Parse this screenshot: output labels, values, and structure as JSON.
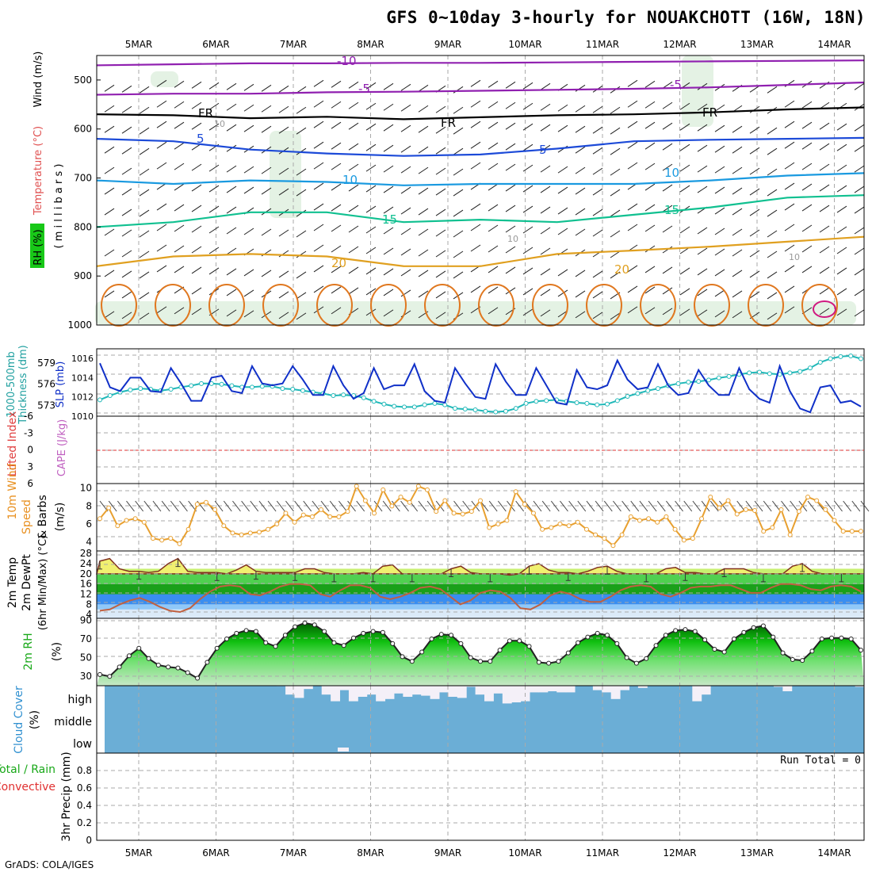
{
  "title": "GFS 0~10day 3-hourly for NOUAKCHOTT (16W, 18N)",
  "credit": "GrADS: COLA/IGES",
  "run_total": "Run Total = 0",
  "colors": {
    "grid": "#aaaaaa",
    "slp": "#1030c8",
    "thick": "#20b8b8",
    "wind": "#e8a030",
    "cape_zero": "#e03030",
    "rh_fill": "#18c818",
    "cloud": "#6baed6",
    "temp_band": "#f0f070"
  },
  "chart_data": [
    {
      "panel": "upper-air",
      "type": "contour",
      "ylabels": [
        "RH (%)",
        "Temperature (°C)",
        "Wind (m/s)",
        "( m i l l i b a r s )"
      ],
      "x_ticks": [
        "5MAR",
        "6MAR",
        "7MAR",
        "8MAR",
        "9MAR",
        "10MAR",
        "11MAR",
        "12MAR",
        "13MAR",
        "14MAR"
      ],
      "y_ticks": [
        "500",
        "600",
        "700",
        "800",
        "900",
        "1000"
      ],
      "y_values": [
        500,
        600,
        700,
        800,
        900,
        1000
      ],
      "ylim": [
        450,
        1000
      ],
      "contour_labels": [
        "-10",
        "-5",
        "-5",
        "FR",
        "FR",
        "FR",
        "5",
        "5",
        "10",
        "10",
        "15",
        "15",
        "20",
        "20",
        "10",
        "10",
        "10"
      ],
      "isotherms": [
        {
          "name": "-10",
          "color": "#9020b0",
          "p": [
            470,
            468,
            466,
            466,
            465,
            465,
            464,
            463,
            462,
            461,
            460
          ]
        },
        {
          "name": "-5",
          "color": "#9020b0",
          "p": [
            530,
            528,
            528,
            525,
            524,
            522,
            520,
            518,
            515,
            510,
            505
          ]
        },
        {
          "name": "FR",
          "color": "#000000",
          "p": [
            570,
            572,
            578,
            575,
            580,
            576,
            572,
            570,
            566,
            560,
            556
          ]
        },
        {
          "name": "5",
          "color": "#1c4ad8",
          "p": [
            620,
            625,
            642,
            650,
            655,
            652,
            640,
            625,
            622,
            620,
            618
          ]
        },
        {
          "name": "10",
          "color": "#1a9ae0",
          "p": [
            705,
            712,
            705,
            708,
            715,
            712,
            712,
            712,
            705,
            695,
            690
          ]
        },
        {
          "name": "15",
          "color": "#10c090",
          "p": [
            800,
            790,
            770,
            770,
            790,
            785,
            790,
            775,
            760,
            740,
            735
          ]
        },
        {
          "name": "20",
          "color": "#e0a020",
          "p": [
            880,
            860,
            855,
            860,
            880,
            880,
            855,
            848,
            840,
            830,
            820
          ]
        }
      ]
    },
    {
      "panel": "slp-thickness",
      "type": "line",
      "ylabels": [
        "1000-500mb",
        "Thickness (dm)",
        "SLP (mb)"
      ],
      "left_ticks": [
        "579",
        "576",
        "573"
      ],
      "left_values": [
        579,
        576,
        573
      ],
      "right_ticks": [
        "1016",
        "1014",
        "1012",
        "1010"
      ],
      "right_values": [
        1016,
        1014,
        1012,
        1010
      ],
      "slp_ylim": [
        1010,
        1017
      ],
      "thick_ylim": [
        571.5,
        581
      ],
      "series": [
        {
          "name": "SLP (mb)",
          "values": [
            1015.5,
            1013,
            1012.6,
            1014,
            1014,
            1012.6,
            1012.5,
            1015,
            1013.4,
            1011.6,
            1011.6,
            1014,
            1014.2,
            1012.6,
            1012.4,
            1015.2,
            1013.4,
            1013.2,
            1013.4,
            1015.2,
            1013.8,
            1012.2,
            1012.2,
            1015.2,
            1013.2,
            1011.8,
            1012.4,
            1015,
            1012.8,
            1013.2,
            1013.2,
            1015.4,
            1012.6,
            1011.6,
            1011.4,
            1015,
            1013.4,
            1012,
            1011.8,
            1015.4,
            1013.6,
            1012.2,
            1012.2,
            1015,
            1013.2,
            1011.4,
            1011.2,
            1014.8,
            1013,
            1012.8,
            1013.2,
            1015.8,
            1013.8,
            1012.8,
            1013,
            1015.4,
            1013.2,
            1012.2,
            1012.4,
            1014.8,
            1013.2,
            1012.2,
            1012.2,
            1015,
            1012.8,
            1011.8,
            1011.4,
            1015.2,
            1012.6,
            1010.8,
            1010.4,
            1013,
            1013.2,
            1011.4,
            1011.6,
            1011
          ]
        },
        {
          "name": "1000-500mb Thickness (dm)",
          "values": [
            573.8,
            574.4,
            574.9,
            575.2,
            575.4,
            575.3,
            575.1,
            575.3,
            575.6,
            575.8,
            576.1,
            576.1,
            576,
            575.8,
            575.6,
            575.6,
            575.7,
            575.7,
            575.4,
            575.3,
            575.1,
            574.9,
            574.7,
            574.4,
            574.5,
            574.4,
            574.1,
            573.6,
            573.2,
            572.9,
            572.8,
            572.8,
            573.1,
            573.3,
            573.1,
            572.6,
            572.5,
            572.4,
            572.2,
            572.1,
            572.2,
            572.6,
            573.3,
            573.6,
            573.7,
            573.8,
            573.6,
            573.4,
            573.3,
            573.1,
            573.2,
            573.7,
            574.3,
            574.7,
            575.1,
            575.4,
            575.8,
            576.1,
            576.3,
            576.4,
            576.6,
            576.9,
            577.1,
            577.4,
            577.6,
            577.7,
            577.5,
            577.4,
            577.6,
            577.8,
            578.3,
            579.1,
            579.6,
            579.9,
            580,
            579.6
          ]
        }
      ]
    },
    {
      "panel": "cape-li",
      "type": "line",
      "ylabels": [
        "Lifted Index",
        "CAPE (J/kg)"
      ],
      "left_ticks": [
        "-6",
        "-3",
        "0",
        "3",
        "6"
      ],
      "left_values": [
        -6,
        -3,
        0,
        3,
        6
      ],
      "ylim": [
        6,
        -6
      ],
      "series": [
        {
          "name": "Lifted Index",
          "values": []
        }
      ]
    },
    {
      "panel": "wind10m",
      "type": "line",
      "ylabels": [
        "10m Wind",
        "Speed",
        "& Barbs",
        "(m/s)"
      ],
      "left_ticks": [
        "10",
        "8",
        "6",
        "4"
      ],
      "left_values": [
        10,
        8,
        6,
        4
      ],
      "ylim": [
        3,
        10.5
      ],
      "series": [
        {
          "name": "10m Wind Speed (m/s)",
          "values": [
            6.6,
            7.8,
            5.8,
            6.4,
            6.6,
            6.2,
            4.4,
            4.2,
            4.4,
            3.8,
            5.4,
            8.2,
            8.4,
            7.6,
            5.8,
            5.0,
            4.8,
            5.0,
            5.1,
            5.4,
            6.0,
            7.2,
            6.2,
            7.0,
            6.8,
            7.6,
            6.8,
            6.8,
            7.4,
            10.2,
            8.6,
            7.2,
            9.8,
            8.0,
            9.0,
            8.4,
            10.2,
            9.8,
            7.4,
            8.6,
            7.2,
            7.1,
            7.4,
            8.6,
            5.6,
            6.0,
            6.4,
            9.6,
            8.2,
            7.2,
            5.4,
            5.6,
            6.0,
            5.8,
            6.2,
            5.4,
            4.8,
            4.4,
            3.6,
            4.8,
            6.8,
            6.4,
            6.6,
            6.2,
            6.8,
            5.4,
            4.2,
            4.4,
            6.6,
            9.0,
            7.8,
            8.6,
            7.1,
            7.6,
            7.5,
            5.2,
            5.6,
            7.6,
            4.8,
            7.4,
            9.0,
            8.6,
            7.6,
            6.4,
            5.2,
            5.2,
            5.2
          ]
        }
      ]
    },
    {
      "panel": "temp2m",
      "type": "area",
      "ylabels": [
        "2m Temp",
        "2m DewPt",
        "(6hr Min/Max) (°C)"
      ],
      "left_ticks": [
        "28",
        "24",
        "20",
        "16",
        "12",
        "8",
        "4"
      ],
      "left_values": [
        28,
        24,
        20,
        16,
        12,
        8,
        4
      ],
      "ylim": [
        2.5,
        29
      ],
      "series": [
        {
          "name": "2m Temp",
          "values": [
            25,
            26,
            22,
            21,
            21,
            20.5,
            21,
            24,
            26,
            21,
            20.5,
            20.5,
            20.5,
            20,
            21.5,
            23.5,
            21,
            20.5,
            20.5,
            20.5,
            20.5,
            22,
            22,
            20.5,
            20,
            20,
            20,
            20.5,
            20,
            23,
            23.5,
            20,
            20,
            20,
            20,
            20,
            22,
            23,
            20.5,
            20,
            20,
            20,
            19.5,
            20,
            23,
            24,
            21.5,
            20.5,
            20.5,
            20,
            21,
            22.5,
            23,
            21,
            20,
            20,
            20,
            20,
            22,
            22.5,
            20.5,
            20.5,
            20,
            20,
            22,
            22,
            22,
            20.5,
            20,
            20,
            20,
            23,
            24,
            21,
            20,
            20,
            20,
            20,
            20
          ]
        },
        {
          "name": "2m DewPt",
          "values": [
            5.5,
            6,
            8,
            9.5,
            10.5,
            9,
            7,
            5.5,
            5,
            6.5,
            10,
            13,
            15,
            15.5,
            15,
            12,
            11.5,
            13,
            15,
            16,
            16,
            15.5,
            12,
            11,
            13.5,
            15.5,
            15.5,
            14.5,
            11,
            10,
            11,
            12.5,
            14.5,
            15,
            14,
            11,
            8,
            9.5,
            12.5,
            13.5,
            13,
            10.5,
            6.5,
            6,
            8,
            11.5,
            13,
            12,
            10,
            9,
            9,
            11,
            13.5,
            15,
            15.5,
            15,
            12,
            11,
            12.5,
            14.5,
            15,
            15,
            15.5,
            15.5,
            14,
            12.5,
            12.5,
            14.5,
            16,
            16,
            15.5,
            14,
            13.5,
            15,
            15.5,
            15,
            13
          ]
        }
      ]
    },
    {
      "panel": "rh2m",
      "type": "area",
      "ylabels": [
        "2m RH",
        "(%)"
      ],
      "left_ticks": [
        "90",
        "70",
        "50",
        "30"
      ],
      "left_values": [
        90,
        70,
        50,
        30
      ],
      "ylim": [
        20,
        92
      ],
      "series": [
        {
          "name": "2m RH (%)",
          "values": [
            32,
            30,
            40,
            52,
            60,
            49,
            42,
            40,
            39,
            34,
            28,
            45,
            60,
            70,
            76,
            79,
            78,
            66,
            62,
            74,
            83,
            87,
            85,
            78,
            66,
            63,
            71,
            76,
            78,
            77,
            65,
            51,
            46,
            56,
            70,
            75,
            74,
            65,
            50,
            46,
            46,
            58,
            68,
            68,
            62,
            45,
            44,
            46,
            55,
            66,
            72,
            76,
            74,
            65,
            50,
            44,
            49,
            63,
            74,
            79,
            80,
            78,
            69,
            59,
            56,
            70,
            77,
            82,
            84,
            72,
            55,
            48,
            47,
            57,
            70,
            71,
            71,
            70,
            58
          ]
        }
      ]
    },
    {
      "panel": "cloud",
      "type": "heatmap",
      "ylabels": [
        "Cloud Cover",
        "(%)"
      ],
      "levels": [
        "high",
        "middle",
        "low"
      ],
      "high_cover": [
        100,
        100,
        100,
        100,
        100,
        100,
        100,
        100,
        100,
        100,
        100,
        100,
        100,
        100,
        100,
        100,
        100,
        100,
        100,
        98,
        60,
        45,
        85,
        100,
        60,
        30,
        80,
        30,
        50,
        60,
        30,
        40,
        65,
        50,
        60,
        55,
        40,
        70,
        50,
        45,
        95,
        60,
        30,
        65,
        20,
        25,
        30,
        70,
        70,
        75,
        70,
        70,
        100,
        100,
        80,
        70,
        40,
        80,
        100,
        90,
        100,
        100,
        100,
        100,
        100,
        30,
        60,
        100,
        100,
        100,
        100,
        100,
        100,
        100,
        95,
        75,
        100,
        100,
        100,
        100,
        100,
        100,
        100,
        95
      ],
      "low_cover": [
        0,
        0,
        0,
        0,
        0,
        0,
        0,
        0,
        0,
        0,
        0,
        0,
        0,
        0,
        0,
        0,
        0,
        0,
        0,
        0,
        0,
        0,
        0,
        0,
        0,
        0,
        0,
        0,
        0,
        0,
        0,
        0,
        0,
        0,
        0,
        0,
        0,
        0,
        0,
        0,
        0,
        0,
        0,
        0,
        0,
        0,
        0,
        0,
        0,
        0,
        0,
        0,
        0,
        0,
        0,
        0,
        0,
        0,
        0,
        0,
        0,
        0,
        0,
        0,
        0,
        0,
        0,
        0,
        0,
        0,
        0,
        0,
        0,
        0,
        0,
        0,
        0,
        0,
        0,
        0,
        0,
        0
      ]
    },
    {
      "panel": "precip",
      "type": "bar",
      "ylabels": [
        "Total / Rain",
        "Convective",
        "3hr Precip (mm)"
      ],
      "left_ticks": [
        "0.8",
        "0.6",
        "0.4",
        "0.2",
        "0"
      ],
      "left_values": [
        0.8,
        0.6,
        0.4,
        0.2,
        0
      ],
      "ylim": [
        0,
        1
      ],
      "x_ticks": [
        "5MAR",
        "6MAR",
        "7MAR",
        "8MAR",
        "9MAR",
        "10MAR",
        "11MAR",
        "12MAR",
        "13MAR",
        "14MAR"
      ],
      "series": [
        {
          "name": "3hr Precip (mm)",
          "values": []
        }
      ]
    }
  ]
}
